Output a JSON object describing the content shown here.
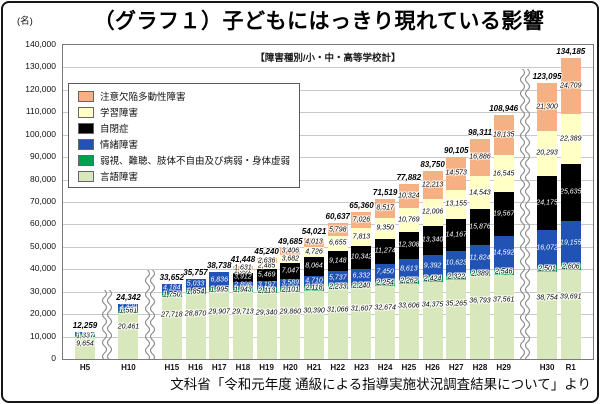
{
  "page": {
    "title": "（グラフ１）子どもにはっきり現れている影響",
    "source_caption": "文科省「令和元年度 通級による指導実施状況調査結果について」より"
  },
  "chart_data": {
    "type": "bar",
    "stacked": true,
    "title": "（グラフ１）子どもにはっきり現れている影響",
    "inner_caption": "【障害種別/小・中・高等学校計】",
    "unit_label": "(名)",
    "xlabel": "",
    "ylabel": "名",
    "ylim": [
      0,
      140000
    ],
    "ytick_step": 10000,
    "grid": true,
    "legend_position": "top-left-inside",
    "axis_break_marks_after": [
      "H5",
      "H10",
      "H29"
    ],
    "categories": [
      "H5",
      "H10",
      "H15",
      "H16",
      "H17",
      "H18",
      "H19",
      "H20",
      "H21",
      "H22",
      "H23",
      "H24",
      "H25",
      "H26",
      "H27",
      "H28",
      "H29",
      "H30",
      "R1"
    ],
    "totals": [
      12259,
      24342,
      33652,
      35757,
      38738,
      41448,
      45240,
      49685,
      54021,
      60637,
      65360,
      71519,
      77882,
      83750,
      90105,
      98311,
      108946,
      123095,
      134185
    ],
    "series": [
      {
        "name": "言語障害",
        "color": "#d9e7bd",
        "label_color": "#000000",
        "values": [
          9654,
          20461,
          27718,
          28870,
          29907,
          29713,
          29340,
          29860,
          30390,
          31066,
          31607,
          32674,
          33606,
          34375,
          35265,
          36793,
          37561,
          38754,
          39691
        ]
      },
      {
        "name": "弱視、難聴、肢体不自由及び病弱・身体虚弱",
        "color": "#00a14e",
        "label_color": "#000000",
        "values": [
          1337,
          1561,
          1750,
          1854,
          1995,
          1943,
          2113,
          2101,
          2118,
          2233,
          2240,
          2254,
          2262,
          2424,
          2322,
          2389,
          2546,
          2501,
          2606
        ]
      },
      {
        "name": "情緒障害",
        "color": "#2053b4",
        "label_color": "#ffffff",
        "values": [
          1268,
          2320,
          4184,
          5033,
          6836,
          2898,
          3197,
          3589,
          4710,
          5737,
          6332,
          7450,
          8613,
          9392,
          10623,
          11824,
          14592,
          16072,
          19155
        ]
      },
      {
        "name": "自閉症",
        "color": "#000000",
        "label_color": "#ffffff",
        "values": [
          0,
          0,
          0,
          0,
          0,
          3912,
          5469,
          7047,
          8064,
          9148,
          10342,
          11274,
          12308,
          13340,
          14167,
          15876,
          19567,
          24175,
          25635
        ]
      },
      {
        "name": "学習障害",
        "color": "#ffffc6",
        "label_color": "#000000",
        "values": [
          0,
          0,
          0,
          0,
          0,
          1351,
          2485,
          3682,
          4726,
          6655,
          7813,
          9350,
          10769,
          12006,
          13155,
          14543,
          16545,
          20293,
          22389
        ]
      },
      {
        "name": "注意欠陥多動性障害",
        "color": "#f5b183",
        "label_color": "#000000",
        "values": [
          0,
          0,
          0,
          0,
          0,
          1631,
          2636,
          3406,
          4013,
          5798,
          7026,
          8517,
          10324,
          12213,
          14573,
          16886,
          18135,
          21300,
          24709
        ]
      }
    ]
  }
}
